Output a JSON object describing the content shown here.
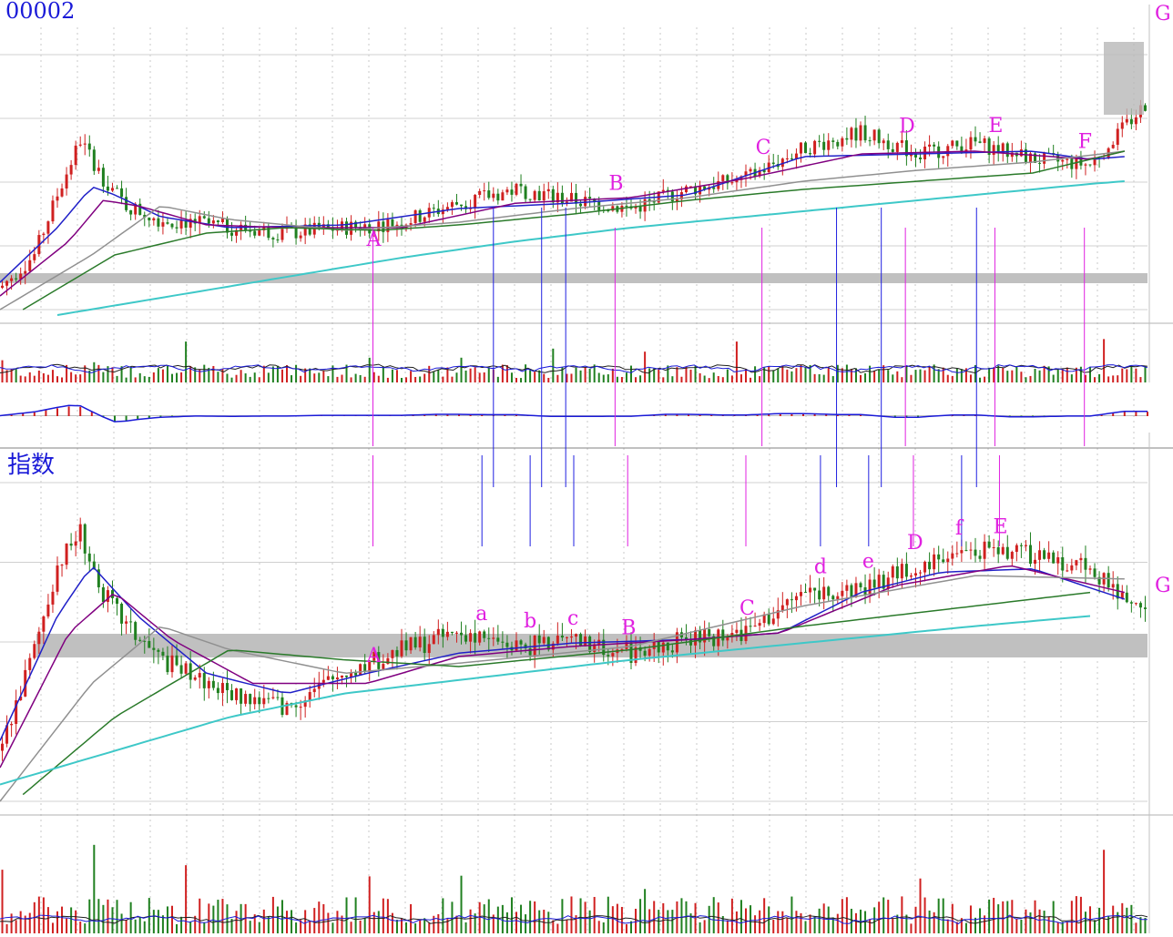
{
  "chart_data": [
    {
      "type": "line",
      "title": "00002",
      "panel": "stock price (candlesticks with moving averages) + volume + MACD",
      "x_unit": "trading-session index (0-100, no date axis shown)",
      "ylim": [
        0,
        100
      ],
      "grid": true,
      "series": [
        {
          "role": "price",
          "x": [
            0,
            3,
            5,
            7,
            8,
            9,
            11,
            14,
            17,
            20,
            25,
            30,
            35,
            40,
            45,
            50,
            55,
            60,
            65,
            70,
            75,
            80,
            85,
            90,
            95,
            100
          ],
          "values": [
            8,
            20,
            42,
            62,
            55,
            48,
            38,
            33,
            32,
            30,
            28,
            30,
            32,
            39,
            44,
            40,
            37,
            44,
            48,
            59,
            65,
            57,
            61,
            55,
            53,
            76
          ]
        },
        {
          "role": "ma-short",
          "color": "#2020c8",
          "x": [
            0,
            5,
            8,
            10,
            14,
            20,
            30,
            40,
            50,
            60,
            70,
            80,
            90,
            95,
            98
          ],
          "values": [
            10,
            30,
            45,
            42,
            34,
            30,
            31,
            37,
            39,
            42,
            56,
            57,
            58,
            55,
            56
          ]
        },
        {
          "role": "ma-mid",
          "color": "#800080",
          "x": [
            0,
            6,
            9,
            12,
            18,
            25,
            35,
            45,
            55,
            65,
            75,
            85,
            95,
            98
          ],
          "values": [
            5,
            25,
            40,
            38,
            31,
            30,
            30,
            39,
            41,
            48,
            57,
            58,
            55,
            58
          ]
        },
        {
          "role": "ma-long-gray",
          "color": "#909090",
          "x": [
            0,
            8,
            14,
            20,
            30,
            40,
            50,
            60,
            70,
            80,
            90,
            98
          ],
          "values": [
            0,
            20,
            38,
            33,
            29,
            32,
            37,
            41,
            47,
            51,
            54,
            58
          ]
        },
        {
          "role": "ma-green",
          "color": "#2a7a2a",
          "x": [
            2,
            10,
            18,
            25,
            33,
            40,
            50,
            60,
            70,
            80,
            90,
            98
          ],
          "values": [
            0,
            20,
            28,
            30,
            29,
            31,
            35,
            40,
            44,
            47,
            50,
            58
          ]
        },
        {
          "role": "ma-cyan",
          "color": "#3ec8c8",
          "x": [
            5,
            15,
            25,
            35,
            45,
            55,
            65,
            75,
            85,
            95,
            98
          ],
          "values": [
            -2,
            5,
            12,
            19,
            25,
            30,
            34,
            38,
            42,
            46,
            47
          ]
        }
      ],
      "annotations": [
        {
          "label": "A",
          "x": 32.5
        },
        {
          "label": "B",
          "x": 53.6
        },
        {
          "label": "C",
          "x": 66.4
        },
        {
          "label": "D",
          "x": 78.9
        },
        {
          "label": "E",
          "x": 86.7
        },
        {
          "label": "F",
          "x": 94.5
        },
        {
          "label": "G",
          "x": 100
        }
      ],
      "annotation_colors": {
        "upper": "#e020e0",
        "lower": "#e020e0",
        "markers": "#1a1ad8"
      }
    },
    {
      "type": "line",
      "title": "指数",
      "panel": "index (candlesticks with moving averages) + volume",
      "x_unit": "trading-session index (0-100, no date axis shown)",
      "ylim": [
        0,
        100
      ],
      "grid": true,
      "series": [
        {
          "role": "price",
          "x": [
            0,
            3,
            5,
            7,
            8,
            9,
            11,
            14,
            17,
            20,
            25,
            30,
            35,
            40,
            45,
            50,
            55,
            60,
            65,
            70,
            75,
            80,
            85,
            90,
            95,
            98
          ],
          "values": [
            15,
            45,
            70,
            80,
            70,
            62,
            52,
            42,
            37,
            32,
            28,
            38,
            45,
            50,
            46,
            47,
            44,
            48,
            50,
            62,
            63,
            70,
            75,
            73,
            70,
            60
          ]
        },
        {
          "role": "ma-short",
          "color": "#2020c8",
          "x": [
            0,
            5,
            8,
            12,
            18,
            25,
            32,
            40,
            50,
            60,
            68,
            75,
            82,
            90,
            98
          ],
          "values": [
            18,
            55,
            70,
            55,
            38,
            32,
            38,
            44,
            47,
            48,
            50,
            62,
            68,
            69,
            60
          ]
        },
        {
          "role": "ma-mid",
          "color": "#800080",
          "x": [
            0,
            6,
            10,
            15,
            22,
            32,
            40,
            50,
            60,
            68,
            78,
            88,
            98
          ],
          "values": [
            10,
            50,
            62,
            48,
            35,
            35,
            43,
            46,
            48,
            50,
            64,
            70,
            62
          ]
        },
        {
          "role": "ma-long-gray",
          "color": "#909090",
          "x": [
            0,
            8,
            14,
            20,
            30,
            40,
            55,
            70,
            85,
            98
          ],
          "values": [
            0,
            35,
            52,
            45,
            38,
            41,
            46,
            58,
            67,
            66
          ]
        },
        {
          "role": "ma-green",
          "color": "#2a7a2a",
          "x": [
            2,
            10,
            20,
            30,
            40,
            55,
            70,
            85,
            95
          ],
          "values": [
            2,
            25,
            45,
            42,
            40,
            45,
            52,
            58,
            62
          ]
        },
        {
          "role": "ma-cyan",
          "color": "#3ec8c8",
          "x": [
            0,
            10,
            20,
            30,
            40,
            55,
            70,
            85,
            95
          ],
          "values": [
            5,
            15,
            25,
            32,
            36,
            42,
            47,
            52,
            55
          ]
        }
      ],
      "annotations": [
        {
          "label": "a",
          "x": 42.0
        },
        {
          "label": "b",
          "x": 46.2
        },
        {
          "label": "c",
          "x": 50.0
        },
        {
          "label": "A",
          "x": 32.5
        },
        {
          "label": "B",
          "x": 54.7
        },
        {
          "label": "C",
          "x": 65.0
        },
        {
          "label": "d",
          "x": 71.5
        },
        {
          "label": "e",
          "x": 75.7
        },
        {
          "label": "D",
          "x": 79.6
        },
        {
          "label": "f",
          "x": 83.8
        },
        {
          "label": "E",
          "x": 87.1
        },
        {
          "label": "G",
          "x": 100
        }
      ]
    }
  ],
  "colors": {
    "up": "#d02020",
    "down": "#208020",
    "grid": "#c8c8c8",
    "band": "#c0c0c0",
    "title": "#1a1ad8"
  },
  "title_stock": "00002",
  "title_index": "指数"
}
